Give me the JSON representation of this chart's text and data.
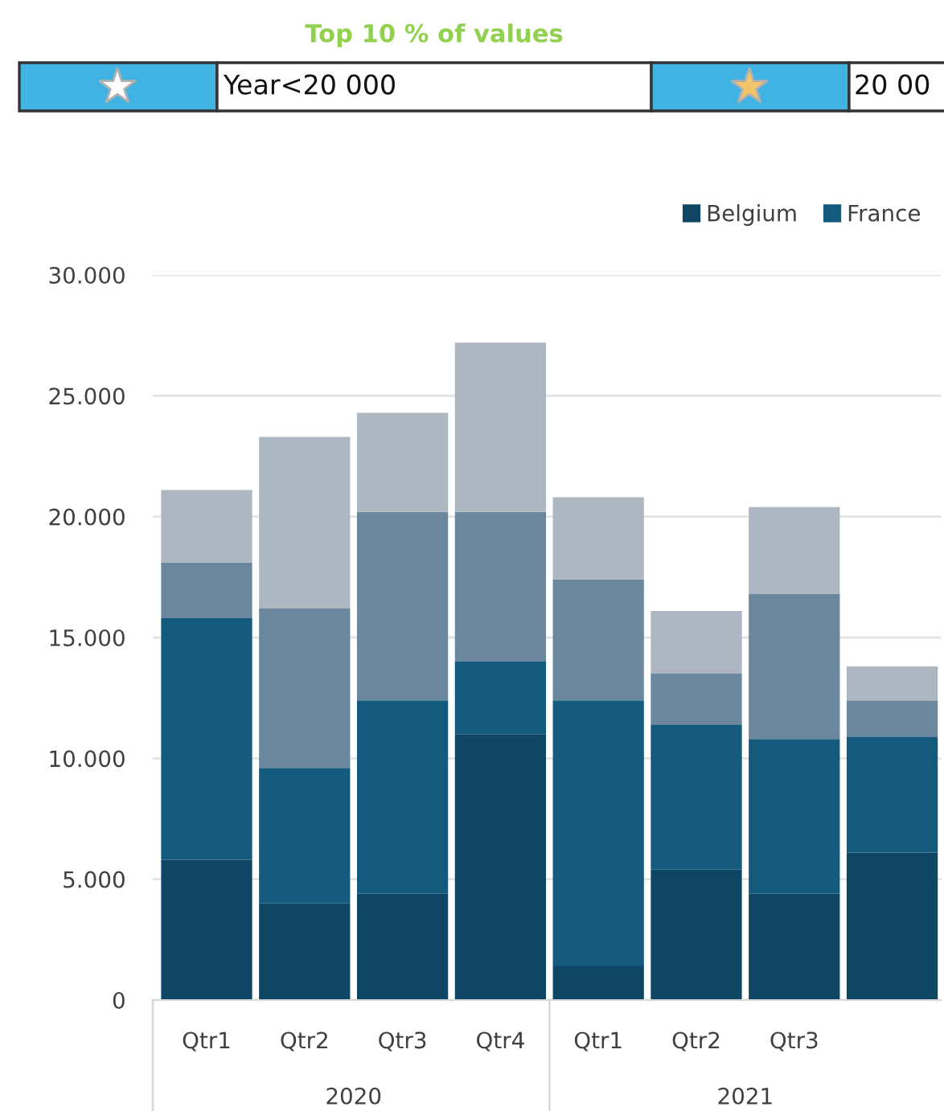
{
  "chart_data": {
    "type": "bar",
    "stacked": true,
    "categories": [
      "Qtr1",
      "Qtr2",
      "Qtr3",
      "Qtr4",
      "Qtr1",
      "Qtr2",
      "Qtr3",
      null
    ],
    "series": [
      {
        "name": "Belgium",
        "color": "#0f4663",
        "values": [
          5800,
          4000,
          4400,
          11000,
          1400,
          5400,
          4400,
          6100
        ]
      },
      {
        "name": "France",
        "color": "#135a7c",
        "values": [
          10000,
          5600,
          8000,
          3000,
          11000,
          6000,
          6400,
          4800
        ]
      },
      {
        "color": "#6a879e",
        "values": [
          2300,
          6600,
          7800,
          6200,
          5000,
          2100,
          6000,
          1500
        ]
      },
      {
        "color": "#adb7c2",
        "values": [
          3000,
          7100,
          4100,
          7000,
          3400,
          2600,
          3600,
          1400
        ]
      }
    ],
    "ylim": [
      0,
      30000
    ],
    "yticks": [
      0,
      {
        "value": 5000,
        "label": "5.000"
      },
      {
        "value": 10000,
        "label": "10.000"
      },
      {
        "value": 15000,
        "label": "15.000"
      },
      {
        "value": 20000,
        "label": "20.000"
      },
      {
        "value": 25000,
        "label": "25.000"
      },
      {
        "value": 30000,
        "label": "30.000"
      }
    ],
    "grid": "y",
    "legend": "top right",
    "annotations": [
      "Top 10 % of values",
      "Year<20 000",
      "20 00",
      "2020",
      "2021"
    ]
  }
}
